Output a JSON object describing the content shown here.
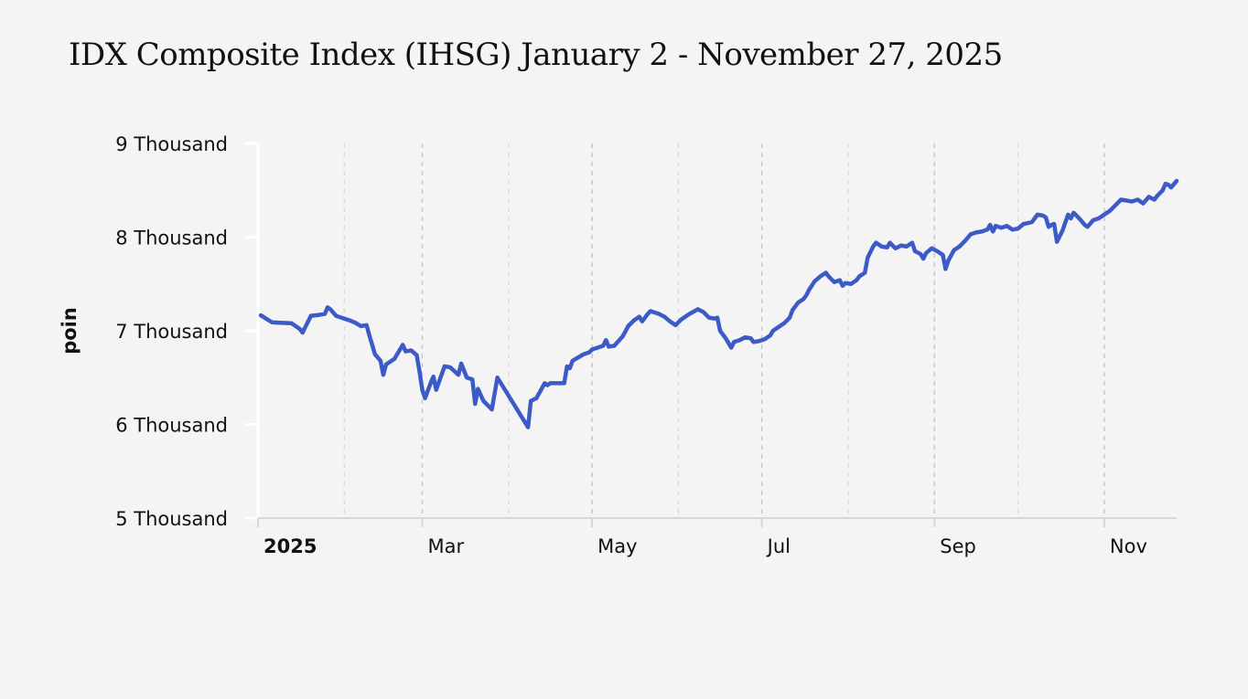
{
  "chart_data": {
    "type": "line",
    "title": "IDX Composite Index (IHSG) January 2 - November 27, 2025",
    "ylabel": "poin",
    "xlabel": "",
    "y_ticks": [
      "5 Thousand",
      "6 Thousand",
      "7 Thousand",
      "8 Thousand",
      "9 Thousand"
    ],
    "y_tick_values": [
      5000,
      6000,
      7000,
      8000,
      9000
    ],
    "x_ticks": [
      {
        "label": "2025",
        "date": "2025-01-01",
        "bold": true
      },
      {
        "label": "Mar",
        "date": "2025-03-01"
      },
      {
        "label": "May",
        "date": "2025-05-01"
      },
      {
        "label": "Jul",
        "date": "2025-07-01"
      },
      {
        "label": "Sep",
        "date": "2025-09-01"
      },
      {
        "label": "Nov",
        "date": "2025-11-01"
      }
    ],
    "minor_gridlines": [
      "2025-02-01",
      "2025-04-01",
      "2025-06-01",
      "2025-08-01",
      "2025-10-01"
    ],
    "xlim": [
      "2025-01-01",
      "2025-11-27"
    ],
    "ylim": [
      5000,
      9000
    ],
    "grid": true,
    "series": [
      {
        "color": "#3c5bc6",
        "points": [
          [
            "2025-01-02",
            7165
          ],
          [
            "2025-01-06",
            7090
          ],
          [
            "2025-01-09",
            7085
          ],
          [
            "2025-01-13",
            7080
          ],
          [
            "2025-01-16",
            7020
          ],
          [
            "2025-01-17",
            6980
          ],
          [
            "2025-01-20",
            7160
          ],
          [
            "2025-01-23",
            7170
          ],
          [
            "2025-01-25",
            7180
          ],
          [
            "2025-01-26",
            7250
          ],
          [
            "2025-01-27",
            7230
          ],
          [
            "2025-01-29",
            7160
          ],
          [
            "2025-02-03",
            7110
          ],
          [
            "2025-02-05",
            7085
          ],
          [
            "2025-02-07",
            7050
          ],
          [
            "2025-02-09",
            7060
          ],
          [
            "2025-02-10",
            6950
          ],
          [
            "2025-02-12",
            6750
          ],
          [
            "2025-02-14",
            6680
          ],
          [
            "2025-02-15",
            6530
          ],
          [
            "2025-02-16",
            6640
          ],
          [
            "2025-02-19",
            6700
          ],
          [
            "2025-02-21",
            6800
          ],
          [
            "2025-02-22",
            6850
          ],
          [
            "2025-02-23",
            6780
          ],
          [
            "2025-02-25",
            6790
          ],
          [
            "2025-02-27",
            6740
          ],
          [
            "2025-02-28",
            6570
          ],
          [
            "2025-03-01",
            6370
          ],
          [
            "2025-03-02",
            6280
          ],
          [
            "2025-03-04",
            6440
          ],
          [
            "2025-03-05",
            6510
          ],
          [
            "2025-03-06",
            6370
          ],
          [
            "2025-03-09",
            6620
          ],
          [
            "2025-03-11",
            6610
          ],
          [
            "2025-03-14",
            6530
          ],
          [
            "2025-03-15",
            6650
          ],
          [
            "2025-03-17",
            6500
          ],
          [
            "2025-03-19",
            6480
          ],
          [
            "2025-03-20",
            6220
          ],
          [
            "2025-03-21",
            6380
          ],
          [
            "2025-03-23",
            6250
          ],
          [
            "2025-03-26",
            6160
          ],
          [
            "2025-03-28",
            6500
          ],
          [
            "2025-04-08",
            5970
          ],
          [
            "2025-04-09",
            6250
          ],
          [
            "2025-04-11",
            6280
          ],
          [
            "2025-04-14",
            6440
          ],
          [
            "2025-04-15",
            6420
          ],
          [
            "2025-04-16",
            6440
          ],
          [
            "2025-04-21",
            6440
          ],
          [
            "2025-04-22",
            6620
          ],
          [
            "2025-04-23",
            6600
          ],
          [
            "2025-04-24",
            6680
          ],
          [
            "2025-04-28",
            6750
          ],
          [
            "2025-04-30",
            6770
          ],
          [
            "2025-05-01",
            6800
          ],
          [
            "2025-05-03",
            6820
          ],
          [
            "2025-05-05",
            6840
          ],
          [
            "2025-05-06",
            6900
          ],
          [
            "2025-05-07",
            6830
          ],
          [
            "2025-05-09",
            6840
          ],
          [
            "2025-05-12",
            6940
          ],
          [
            "2025-05-14",
            7050
          ],
          [
            "2025-05-16",
            7110
          ],
          [
            "2025-05-18",
            7150
          ],
          [
            "2025-05-19",
            7100
          ],
          [
            "2025-05-21",
            7180
          ],
          [
            "2025-05-22",
            7210
          ],
          [
            "2025-05-25",
            7180
          ],
          [
            "2025-05-27",
            7150
          ],
          [
            "2025-05-29",
            7100
          ],
          [
            "2025-05-31",
            7060
          ],
          [
            "2025-06-02",
            7120
          ],
          [
            "2025-06-05",
            7180
          ],
          [
            "2025-06-08",
            7230
          ],
          [
            "2025-06-10",
            7200
          ],
          [
            "2025-06-12",
            7140
          ],
          [
            "2025-06-14",
            7130
          ],
          [
            "2025-06-15",
            7140
          ],
          [
            "2025-06-16",
            7000
          ],
          [
            "2025-06-18",
            6920
          ],
          [
            "2025-06-20",
            6820
          ],
          [
            "2025-06-21",
            6880
          ],
          [
            "2025-06-23",
            6900
          ],
          [
            "2025-06-25",
            6930
          ],
          [
            "2025-06-27",
            6920
          ],
          [
            "2025-06-28",
            6880
          ],
          [
            "2025-06-30",
            6890
          ],
          [
            "2025-07-02",
            6910
          ],
          [
            "2025-07-04",
            6950
          ],
          [
            "2025-07-05",
            7000
          ],
          [
            "2025-07-07",
            7040
          ],
          [
            "2025-07-09",
            7080
          ],
          [
            "2025-07-11",
            7140
          ],
          [
            "2025-07-12",
            7220
          ],
          [
            "2025-07-14",
            7300
          ],
          [
            "2025-07-16",
            7340
          ],
          [
            "2025-07-17",
            7380
          ],
          [
            "2025-07-18",
            7440
          ],
          [
            "2025-07-20",
            7530
          ],
          [
            "2025-07-22",
            7580
          ],
          [
            "2025-07-24",
            7620
          ],
          [
            "2025-07-25",
            7580
          ],
          [
            "2025-07-27",
            7520
          ],
          [
            "2025-07-29",
            7540
          ],
          [
            "2025-07-30",
            7480
          ],
          [
            "2025-07-31",
            7510
          ],
          [
            "2025-08-02",
            7500
          ],
          [
            "2025-08-04",
            7540
          ],
          [
            "2025-08-05",
            7580
          ],
          [
            "2025-08-07",
            7620
          ],
          [
            "2025-08-08",
            7780
          ],
          [
            "2025-08-10",
            7900
          ],
          [
            "2025-08-11",
            7940
          ],
          [
            "2025-08-13",
            7900
          ],
          [
            "2025-08-15",
            7890
          ],
          [
            "2025-08-16",
            7940
          ],
          [
            "2025-08-18",
            7880
          ],
          [
            "2025-08-20",
            7910
          ],
          [
            "2025-08-22",
            7900
          ],
          [
            "2025-08-24",
            7940
          ],
          [
            "2025-08-25",
            7850
          ],
          [
            "2025-08-27",
            7820
          ],
          [
            "2025-08-28",
            7770
          ],
          [
            "2025-08-29",
            7830
          ],
          [
            "2025-08-31",
            7880
          ],
          [
            "2025-09-02",
            7850
          ],
          [
            "2025-09-04",
            7810
          ],
          [
            "2025-09-05",
            7660
          ],
          [
            "2025-09-06",
            7750
          ],
          [
            "2025-09-08",
            7860
          ],
          [
            "2025-09-10",
            7900
          ],
          [
            "2025-09-12",
            7960
          ],
          [
            "2025-09-14",
            8030
          ],
          [
            "2025-09-16",
            8050
          ],
          [
            "2025-09-18",
            8060
          ],
          [
            "2025-09-20",
            8080
          ],
          [
            "2025-09-21",
            8130
          ],
          [
            "2025-09-22",
            8060
          ],
          [
            "2025-09-23",
            8120
          ],
          [
            "2025-09-25",
            8100
          ],
          [
            "2025-09-27",
            8120
          ],
          [
            "2025-09-29",
            8080
          ],
          [
            "2025-10-01",
            8090
          ],
          [
            "2025-10-03",
            8140
          ],
          [
            "2025-10-06",
            8160
          ],
          [
            "2025-10-08",
            8240
          ],
          [
            "2025-10-10",
            8230
          ],
          [
            "2025-10-11",
            8210
          ],
          [
            "2025-10-12",
            8110
          ],
          [
            "2025-10-13",
            8130
          ],
          [
            "2025-10-14",
            8140
          ],
          [
            "2025-10-15",
            7950
          ],
          [
            "2025-10-17",
            8070
          ],
          [
            "2025-10-19",
            8240
          ],
          [
            "2025-10-20",
            8200
          ],
          [
            "2025-10-21",
            8260
          ],
          [
            "2025-10-23",
            8200
          ],
          [
            "2025-10-25",
            8130
          ],
          [
            "2025-10-26",
            8110
          ],
          [
            "2025-10-28",
            8180
          ],
          [
            "2025-10-30",
            8200
          ],
          [
            "2025-11-01",
            8240
          ],
          [
            "2025-11-03",
            8280
          ],
          [
            "2025-11-05",
            8340
          ],
          [
            "2025-11-07",
            8400
          ],
          [
            "2025-11-09",
            8390
          ],
          [
            "2025-11-11",
            8380
          ],
          [
            "2025-11-13",
            8400
          ],
          [
            "2025-11-15",
            8360
          ],
          [
            "2025-11-17",
            8430
          ],
          [
            "2025-11-19",
            8400
          ],
          [
            "2025-11-20",
            8440
          ],
          [
            "2025-11-22",
            8500
          ],
          [
            "2025-11-23",
            8570
          ],
          [
            "2025-11-24",
            8560
          ],
          [
            "2025-11-25",
            8530
          ],
          [
            "2025-11-27",
            8600
          ]
        ]
      }
    ]
  }
}
